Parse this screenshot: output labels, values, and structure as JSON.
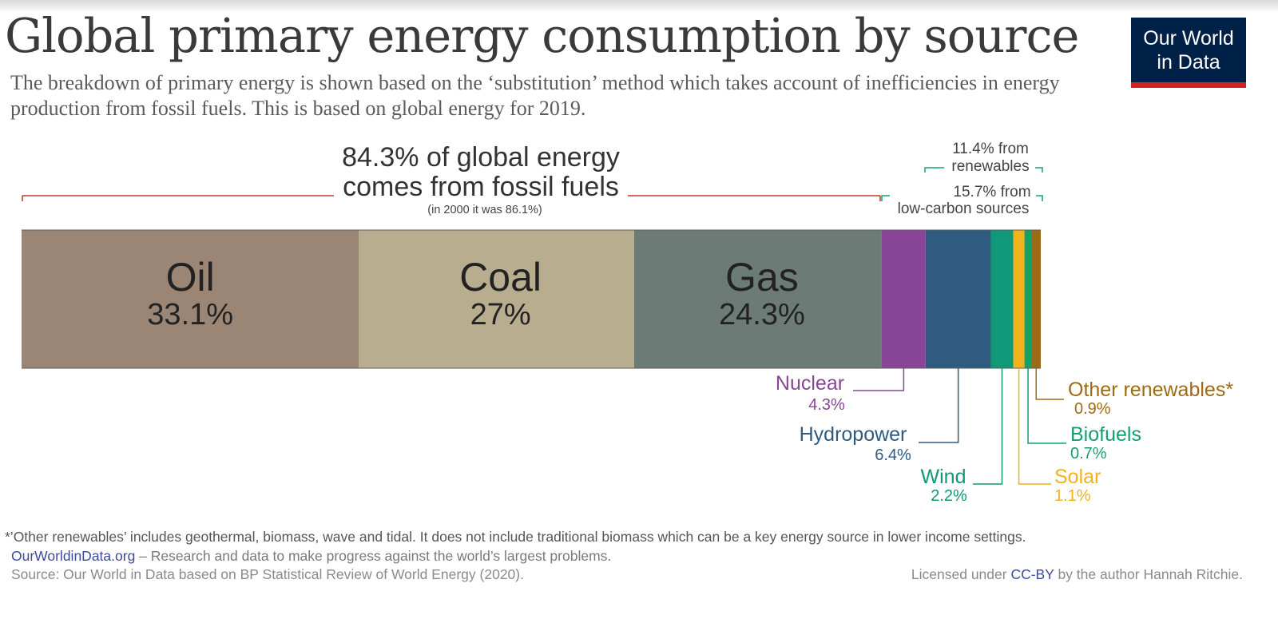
{
  "header": {
    "title": "Global primary energy consumption by source",
    "subtitle": "The breakdown of primary energy is shown based on the ‘substitution’ method which takes account of inefficiencies in energy production from fossil fuels. This is based on global energy for 2019."
  },
  "logo": {
    "line1": "Our World",
    "line2": "in Data"
  },
  "chart_data": {
    "type": "stacked-bar",
    "title": "Global primary energy consumption by source",
    "unit": "%",
    "year": 2019,
    "categories": [
      "Oil",
      "Coal",
      "Gas",
      "Nuclear",
      "Hydropower",
      "Wind",
      "Solar",
      "Biofuels",
      "Other renewables*"
    ],
    "values": [
      33.1,
      27,
      24.3,
      4.3,
      6.4,
      2.2,
      1.1,
      0.7,
      0.9
    ],
    "value_labels": [
      "33.1%",
      "27%",
      "24.3%",
      "4.3%",
      "6.4%",
      "2.2%",
      "1.1%",
      "0.7%",
      "0.9%"
    ],
    "colors": [
      "#9b8676",
      "#b9ad8f",
      "#6d7b76",
      "#894698",
      "#2f5b81",
      "#119878",
      "#f2b21c",
      "#12a26a",
      "#9e6a14"
    ],
    "groups": {
      "fossil": {
        "line1": "84.3% of global energy",
        "line2": "comes from fossil fuels",
        "note": "(in 2000 it was 86.1%)",
        "color": "#c0352b"
      },
      "renewables": {
        "line1": "11.4% from",
        "line2": "renewables",
        "color": "#15a46a"
      },
      "low_carbon": {
        "line1": "15.7% from",
        "line2": "low-carbon sources",
        "color": "#15a46a"
      }
    }
  },
  "footer": {
    "footnote": "*’Other renewables’ includes geothermal, biomass, wave and tidal. It does not include traditional biomass which can be a key energy source in lower income settings.",
    "owid_link": "OurWorldinData.org",
    "owid_tagline": " – Research and data to make progress against the world’s largest problems.",
    "source": "Source: Our World in Data based on BP Statistical Review of World Energy (2020).",
    "license_prefix": "Licensed under ",
    "license_link": "CC-BY",
    "license_suffix": " by the author Hannah Ritchie."
  }
}
